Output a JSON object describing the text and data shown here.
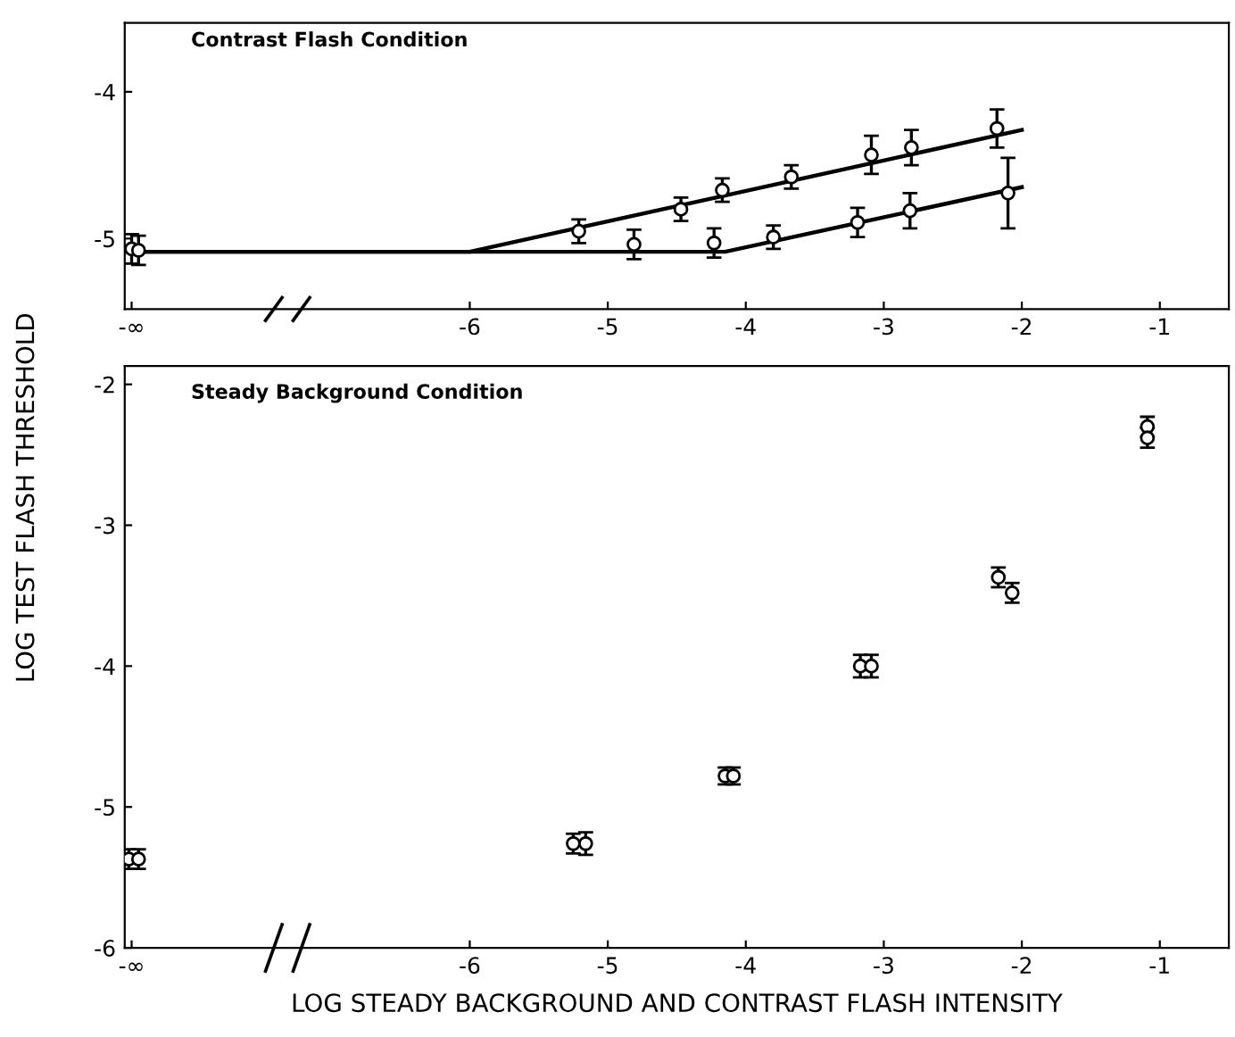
{
  "chart_data": [
    {
      "type": "scatter",
      "title": "Contrast Flash Condition",
      "xlim": [
        -8.5,
        -0.5
      ],
      "ylim": [
        -5.48,
        -3.53
      ],
      "xticks": [
        {
          "value": -8.45,
          "label": "-∞"
        },
        -6,
        -5,
        -4,
        -3,
        -2,
        -1
      ],
      "yticks": [
        -5,
        -4
      ],
      "grid": false,
      "legend": false,
      "marker": "circle",
      "series": [
        {
          "color": "#000000",
          "x": [
            -8.45,
            -5.21,
            -4.47,
            -4.17,
            -3.67,
            -3.09,
            -2.8,
            -2.18
          ],
          "values": [
            -5.07,
            -4.95,
            -4.8,
            -4.67,
            -4.58,
            -4.43,
            -4.38,
            -4.25
          ],
          "errors": [
            0.1,
            0.08,
            0.08,
            0.08,
            0.08,
            0.13,
            0.12,
            0.13
          ]
        },
        {
          "color": "#000000",
          "x": [
            -8.4,
            -4.81,
            -4.23,
            -3.8,
            -3.19,
            -2.81,
            -2.1
          ],
          "values": [
            -5.08,
            -5.04,
            -5.03,
            -4.99,
            -4.89,
            -4.81,
            -4.69
          ],
          "errors": [
            0.1,
            0.1,
            0.1,
            0.08,
            0.1,
            0.12,
            0.24
          ]
        },
        {
          "type": "line",
          "marker": "none",
          "color": "#000000",
          "x": [
            -8.45,
            -6,
            -2
          ],
          "values": [
            -5.09,
            -5.09,
            -4.26
          ]
        },
        {
          "type": "line",
          "marker": "none",
          "color": "#000000",
          "x": [
            -8.45,
            -4.15,
            -2
          ],
          "values": [
            -5.09,
            -5.09,
            -4.65
          ]
        }
      ]
    },
    {
      "type": "scatter",
      "title": "Steady Background Condition",
      "xlabel": "LOG STEADY BACKGROUND AND CONTRAST FLASH INTENSITY",
      "ylabel": "LOG TEST FLASH THRESHOLD",
      "xlim": [
        -8.5,
        -0.5
      ],
      "ylim": [
        -6,
        -1.87
      ],
      "xticks": [
        {
          "value": -8.45,
          "label": "-∞"
        },
        -6,
        -5,
        -4,
        -3,
        -2,
        -1
      ],
      "yticks": [
        -6,
        -5,
        -4,
        -3,
        -2
      ],
      "grid": false,
      "legend": false,
      "marker": "circle",
      "series": [
        {
          "color": "#000000",
          "x": [
            -8.47,
            -5.25,
            -4.15,
            -3.17,
            -2.17,
            -1.09
          ],
          "values": [
            -5.37,
            -5.26,
            -4.78,
            -4.0,
            -3.37,
            -2.3
          ],
          "errors": [
            0.07,
            0.07,
            0.06,
            0.08,
            0.07,
            0.07
          ]
        },
        {
          "color": "#000000",
          "x": [
            -8.4,
            -5.16,
            -4.09,
            -3.09,
            -2.07,
            -1.09
          ],
          "values": [
            -5.37,
            -5.26,
            -4.78,
            -4.0,
            -3.48,
            -2.38
          ],
          "errors": [
            0.07,
            0.08,
            0.06,
            0.08,
            0.07,
            0.07
          ]
        }
      ]
    }
  ]
}
